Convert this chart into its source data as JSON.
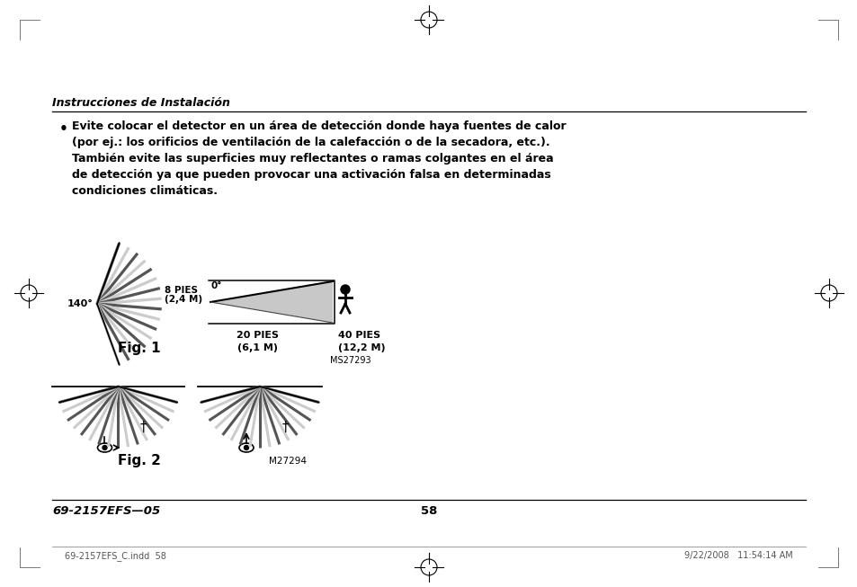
{
  "bg_color": "#ffffff",
  "page_title": "Instrucciones de Instalación",
  "bullet_line1": "Evite colocar el detector en un área de detección donde haya fuentes de calor",
  "bullet_line2": "(por ej.: los orificios de ventilación de la calefacción o de la secadora, etc.).",
  "bullet_line3": "También evite las superficies muy reflectantes o ramas colgantes en el área",
  "bullet_line4": "de detección ya que pueden provocar una activación falsa en determinadas",
  "bullet_line5": "condiciones climáticas.",
  "fig1_label": "Fig. 1",
  "fig2_label": "Fig. 2",
  "fig1_angle_label": "140°",
  "fig1_pies_label1": "8 PIES",
  "fig1_m_label1": "(2,4 M)",
  "fig1_deg_label": "0°",
  "fig1_pies_label2": "20 PIES",
  "fig1_m_label2": "(6,1 M)",
  "fig1_pies_label3": "40 PIES",
  "fig1_m_label3": "(12,2 M)",
  "fig1_code": "MS27293",
  "fig2_code": "M27294",
  "footer_left": "69-2157EFS—05",
  "footer_center": "58",
  "footer_bottom_left": "69-2157EFS_C.indd  58",
  "footer_bottom_right": "9/22/2008   11:54:14 AM",
  "crosshair_color": "#000000",
  "line_color": "#000000",
  "text_color": "#000000"
}
